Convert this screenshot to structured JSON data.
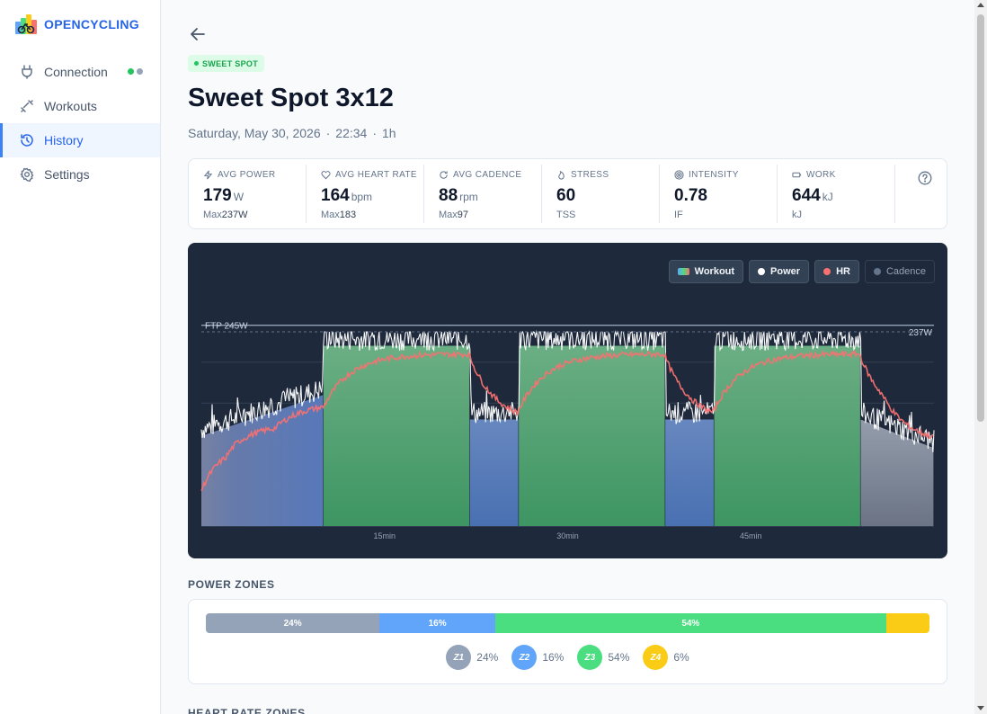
{
  "brand": {
    "name": "OPENCYCLING"
  },
  "nav": [
    {
      "label": "Connection",
      "icon": "plug-icon"
    },
    {
      "label": "Workouts",
      "icon": "dumbbell-icon"
    },
    {
      "label": "History",
      "icon": "history-icon"
    },
    {
      "label": "Settings",
      "icon": "gear-icon"
    }
  ],
  "workout": {
    "badge": "SWEET SPOT",
    "title": "Sweet Spot 3x12",
    "date": "Saturday, May 30, 2026",
    "time": "22:34",
    "duration": "1h"
  },
  "stats": [
    {
      "label": "AVG POWER",
      "icon": "bolt-icon",
      "value": "179",
      "unit": "W",
      "sub_label": "Max",
      "sub_value": "237W"
    },
    {
      "label": "AVG HEART RATE",
      "icon": "heart-icon",
      "value": "164",
      "unit": "bpm",
      "sub_label": "Max",
      "sub_value": "183"
    },
    {
      "label": "AVG CADENCE",
      "icon": "refresh-icon",
      "value": "88",
      "unit": "rpm",
      "sub_label": "Max",
      "sub_value": "97"
    },
    {
      "label": "STRESS",
      "icon": "flame-icon",
      "value": "60",
      "unit": "",
      "sub_label": "TSS",
      "sub_value": ""
    },
    {
      "label": "INTENSITY",
      "icon": "target-icon",
      "value": "0.78",
      "unit": "",
      "sub_label": "IF",
      "sub_value": ""
    },
    {
      "label": "WORK",
      "icon": "battery-icon",
      "value": "644",
      "unit": "kJ",
      "sub_label": "kJ",
      "sub_value": ""
    }
  ],
  "chart_toggles": [
    {
      "label": "Workout",
      "on": true
    },
    {
      "label": "Power",
      "on": true
    },
    {
      "label": "HR",
      "on": true
    },
    {
      "label": "Cadence",
      "on": false
    }
  ],
  "chart_data": {
    "type": "area",
    "ftp_label": "FTP 245W",
    "max_label": "237W",
    "x_ticks": [
      "15min",
      "30min",
      "45min"
    ],
    "x_tick_minutes": [
      15,
      30,
      45
    ],
    "duration_min": 60,
    "ylim": [
      0,
      260
    ],
    "ftp": 245,
    "max_power": 237,
    "workout_blocks": [
      {
        "start": 0,
        "end": 10,
        "from": 110,
        "to": 160,
        "zone": "warmup"
      },
      {
        "start": 10,
        "end": 22,
        "from": 220,
        "to": 220,
        "zone": "sweetspot"
      },
      {
        "start": 22,
        "end": 26,
        "from": 130,
        "to": 130,
        "zone": "recovery"
      },
      {
        "start": 26,
        "end": 38,
        "from": 220,
        "to": 220,
        "zone": "sweetspot"
      },
      {
        "start": 38,
        "end": 42,
        "from": 130,
        "to": 130,
        "zone": "recovery"
      },
      {
        "start": 42,
        "end": 54,
        "from": 220,
        "to": 220,
        "zone": "sweetspot"
      },
      {
        "start": 54,
        "end": 60,
        "from": 130,
        "to": 95,
        "zone": "cooldown"
      }
    ],
    "series": [
      {
        "name": "Power",
        "color": "#ffffff"
      },
      {
        "name": "HR",
        "color": "#f87171"
      }
    ]
  },
  "power_zones": {
    "title": "POWER ZONES",
    "zones": [
      {
        "name": "Z1",
        "pct": 24,
        "label": "24%",
        "color": "#94a3b8"
      },
      {
        "name": "Z2",
        "pct": 16,
        "label": "16%",
        "color": "#60a5fa"
      },
      {
        "name": "Z3",
        "pct": 54,
        "label": "54%",
        "color": "#4ade80"
      },
      {
        "name": "Z4",
        "pct": 6,
        "label": "6%",
        "color": "#facc15"
      }
    ]
  },
  "hr_zones": {
    "title": "HEART RATE ZONES"
  },
  "colors": {
    "accent": "#2563eb",
    "panel": "#1e293b",
    "connected": "#22c55e",
    "idle": "#94a3b8"
  }
}
